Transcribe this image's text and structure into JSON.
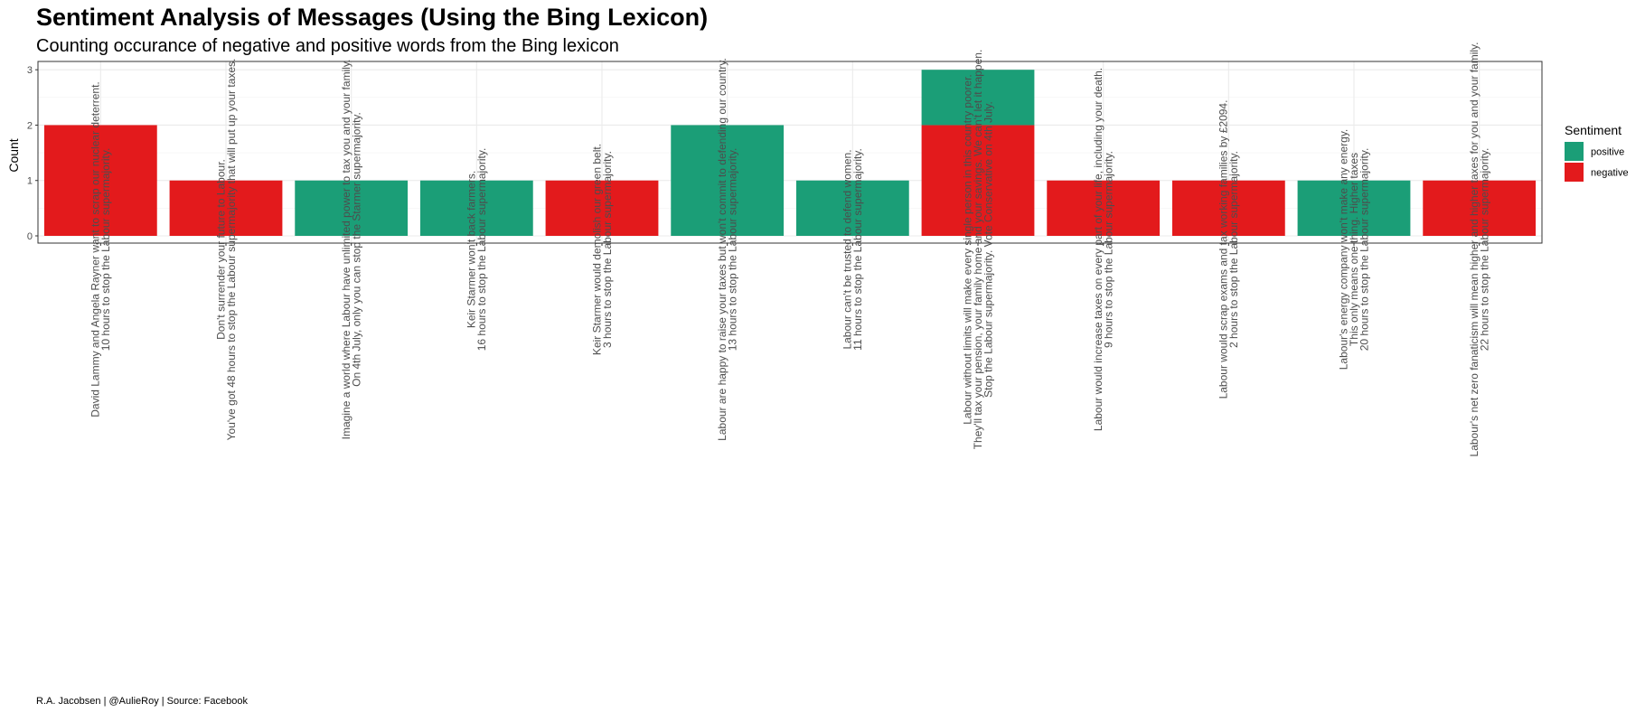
{
  "title": "Sentiment Analysis of Messages (Using the Bing Lexicon)",
  "subtitle": "Counting occurance of negative and positive words from the Bing lexicon",
  "caption": "R.A. Jacobsen | @AulieRoy | Source: Facebook",
  "chart_data": {
    "type": "bar",
    "stacked": true,
    "xlabel": "",
    "ylabel": "Count",
    "ylim": [
      0,
      3.15
    ],
    "yticks": [
      0,
      1,
      2,
      3
    ],
    "grid": true,
    "legend": {
      "title": "Sentiment",
      "position": "right"
    },
    "categories": [
      [
        "David Lammy and Angela Rayner want to scrap our nuclear deterrent.",
        "10 hours to stop the Labour supermajority."
      ],
      [
        "Don't surrender your future to Labour.",
        "You've got 48 hours to stop the Labour supermajority that will put up your taxes."
      ],
      [
        "Imagine a world where Labour have unlimited power to tax you and your family.",
        "On 4th July, only you can stop the Starmer supermajority."
      ],
      [
        "Keir Starmer won't back farmers.",
        "16 hours to stop the Labour supermajority."
      ],
      [
        "Keir Starmer would demolish our green belt.",
        "3 hours to stop the Labour supermajority."
      ],
      [
        "Labour are happy to raise your taxes but won't commit to defending our country.",
        "13 hours to stop the Labour supermajority."
      ],
      [
        "Labour can't be trusted to defend women.",
        "11 hours to stop the Labour supermajority."
      ],
      [
        "Labour without limits will make every single person in this country poorer.",
        "They'll tax your pension, your family home and your savings.  We can't let it happen.",
        "Stop the Labour supermajority. Vote Conservative on 4th July."
      ],
      [
        "Labour would increase taxes on every part of your life, including your death.",
        "9 hours to stop the Labour supermajority."
      ],
      [
        "Labour would scrap exams and tax working families by £2094.",
        "2 hours to stop the Labour supermajority."
      ],
      [
        "Labour's energy company won't make any energy.",
        "This only means one thing. Higher taxes",
        "20 hours to stop the Labour supermajority."
      ],
      [
        "Labour's net zero fanaticism will mean higher and higher taxes for you and your family.",
        "22 hours to stop the Labour supermajority."
      ]
    ],
    "series": [
      {
        "name": "negative",
        "color": "#E31A1C",
        "values": [
          2,
          1,
          0,
          0,
          1,
          0,
          0,
          2,
          1,
          1,
          0,
          1
        ]
      },
      {
        "name": "positive",
        "color": "#1B9E77",
        "values": [
          0,
          0,
          1,
          1,
          0,
          2,
          1,
          1,
          0,
          0,
          1,
          0
        ]
      }
    ],
    "legend_order": [
      "positive",
      "negative"
    ]
  }
}
